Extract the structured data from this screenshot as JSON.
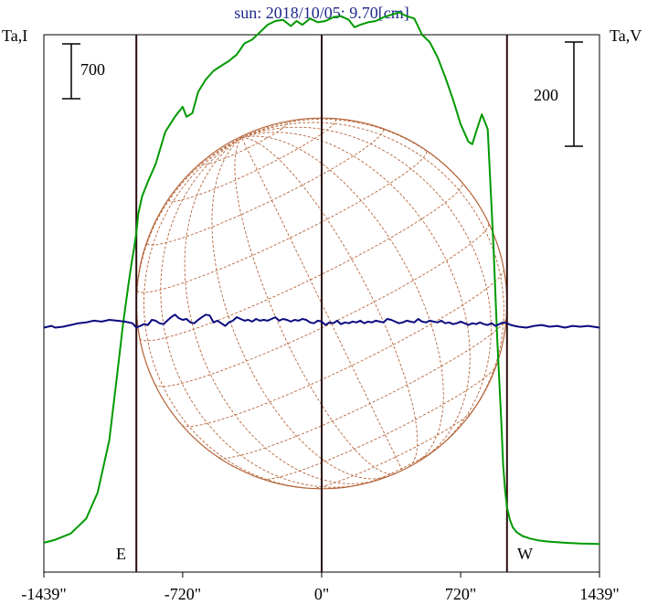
{
  "chart_data": {
    "type": "line",
    "title": "sun: 2018/10/05: 9.70[cm]",
    "ylabel_left": "Ta,I",
    "ylabel_right": "Ta,V",
    "scale_bar_left_label": "700",
    "scale_bar_right_label": "200",
    "limb_label_left": "E",
    "limb_label_right": "W",
    "xlim": [
      -1439,
      1439
    ],
    "ylim_left": [
      -110,
      2050
    ],
    "ylim_right": [
      -283,
      339
    ],
    "x_ticks": [
      -1439,
      -720,
      0,
      720,
      1439
    ],
    "x_tick_labels": [
      "-1439\"",
      "-720\"",
      "0\"",
      "720\"",
      "1439\""
    ],
    "vertical_lines": [
      -960,
      0,
      960
    ],
    "solar_disk": {
      "radius_arcsec": 960,
      "grid": "dashed heliographic grid"
    },
    "series": [
      {
        "color": "#009900",
        "axis": "left",
        "x": [
          -1439,
          -1380,
          -1300,
          -1220,
          -1160,
          -1100,
          -1060,
          -1030,
          -1000,
          -985,
          -970,
          -960,
          -950,
          -930,
          -900,
          -860,
          -810,
          -760,
          -720,
          -700,
          -670,
          -640,
          -600,
          -560,
          -520,
          -480,
          -440,
          -400,
          -360,
          -320,
          -280,
          -240,
          -200,
          -160,
          -130,
          -100,
          -60,
          -20,
          20,
          60,
          100,
          140,
          170,
          200,
          240,
          280,
          320,
          360,
          400,
          440,
          480,
          520,
          560,
          600,
          640,
          680,
          720,
          760,
          780,
          800,
          830,
          860,
          890,
          910,
          930,
          940,
          950,
          960,
          975,
          990,
          1010,
          1040,
          1080,
          1120,
          1180,
          1260,
          1340,
          1439
        ],
        "values": [
          8,
          20,
          45,
          105,
          210,
          420,
          680,
          880,
          1050,
          1130,
          1200,
          1255,
          1330,
          1400,
          1460,
          1530,
          1660,
          1720,
          1760,
          1720,
          1735,
          1820,
          1870,
          1905,
          1925,
          1945,
          1970,
          2015,
          2030,
          2060,
          2090,
          2105,
          2110,
          2085,
          2105,
          2090,
          2115,
          2100,
          2105,
          2120,
          2125,
          2110,
          2080,
          2090,
          2100,
          2105,
          2120,
          2130,
          2140,
          2125,
          2115,
          2050,
          2020,
          1960,
          1880,
          1790,
          1690,
          1620,
          1610,
          1660,
          1730,
          1670,
          1200,
          820,
          500,
          320,
          220,
          150,
          100,
          70,
          50,
          35,
          25,
          18,
          12,
          8,
          5,
          3
        ]
      },
      {
        "color": "#0a0a80",
        "axis": "right",
        "x": [
          -1439,
          -1400,
          -1380,
          -1340,
          -1300,
          -1260,
          -1220,
          -1180,
          -1140,
          -1100,
          -1060,
          -1020,
          -980,
          -960,
          -940,
          -920,
          -900,
          -880,
          -860,
          -840,
          -820,
          -800,
          -780,
          -760,
          -740,
          -720,
          -700,
          -680,
          -660,
          -640,
          -620,
          -600,
          -580,
          -560,
          -540,
          -520,
          -500,
          -480,
          -460,
          -440,
          -420,
          -400,
          -380,
          -360,
          -340,
          -320,
          -300,
          -280,
          -260,
          -240,
          -220,
          -200,
          -180,
          -160,
          -140,
          -120,
          -100,
          -80,
          -60,
          -40,
          -20,
          0,
          20,
          40,
          60,
          80,
          100,
          120,
          140,
          160,
          180,
          200,
          220,
          240,
          260,
          280,
          300,
          320,
          340,
          360,
          380,
          400,
          420,
          440,
          460,
          480,
          500,
          520,
          540,
          560,
          580,
          600,
          620,
          640,
          660,
          680,
          700,
          720,
          740,
          760,
          780,
          800,
          820,
          840,
          860,
          880,
          900,
          920,
          940,
          960,
          980,
          1000,
          1020,
          1060,
          1100,
          1140,
          1180,
          1220,
          1260,
          1300,
          1340,
          1380,
          1439
        ],
        "values": [
          0,
          2,
          0,
          1,
          3,
          5,
          6,
          8,
          7,
          9,
          8,
          7,
          5,
          0,
          2,
          4,
          3,
          9,
          8,
          5,
          4,
          8,
          12,
          15,
          11,
          9,
          10,
          6,
          5,
          9,
          12,
          15,
          14,
          6,
          8,
          5,
          2,
          6,
          8,
          12,
          10,
          8,
          9,
          7,
          10,
          8,
          9,
          8,
          10,
          12,
          8,
          10,
          9,
          7,
          9,
          8,
          10,
          9,
          6,
          5,
          8,
          7,
          3,
          6,
          5,
          8,
          4,
          6,
          5,
          7,
          6,
          8,
          5,
          7,
          6,
          8,
          7,
          6,
          10,
          9,
          7,
          5,
          6,
          8,
          7,
          6,
          10,
          7,
          6,
          8,
          7,
          6,
          8,
          5,
          6,
          4,
          5,
          7,
          5,
          3,
          5,
          4,
          6,
          4,
          3,
          5,
          2,
          4,
          6,
          5,
          3,
          2,
          1,
          0,
          2,
          3,
          1,
          2,
          0,
          2,
          1,
          2,
          0
        ]
      }
    ]
  },
  "colors": {
    "intensity_curve": "#009900",
    "polarization_curve": "#0a0a80",
    "solar_disk": "#b5653a",
    "vertical_lines": "#2a0d0d",
    "axes": "#000000",
    "title": "#1f2a8a"
  }
}
